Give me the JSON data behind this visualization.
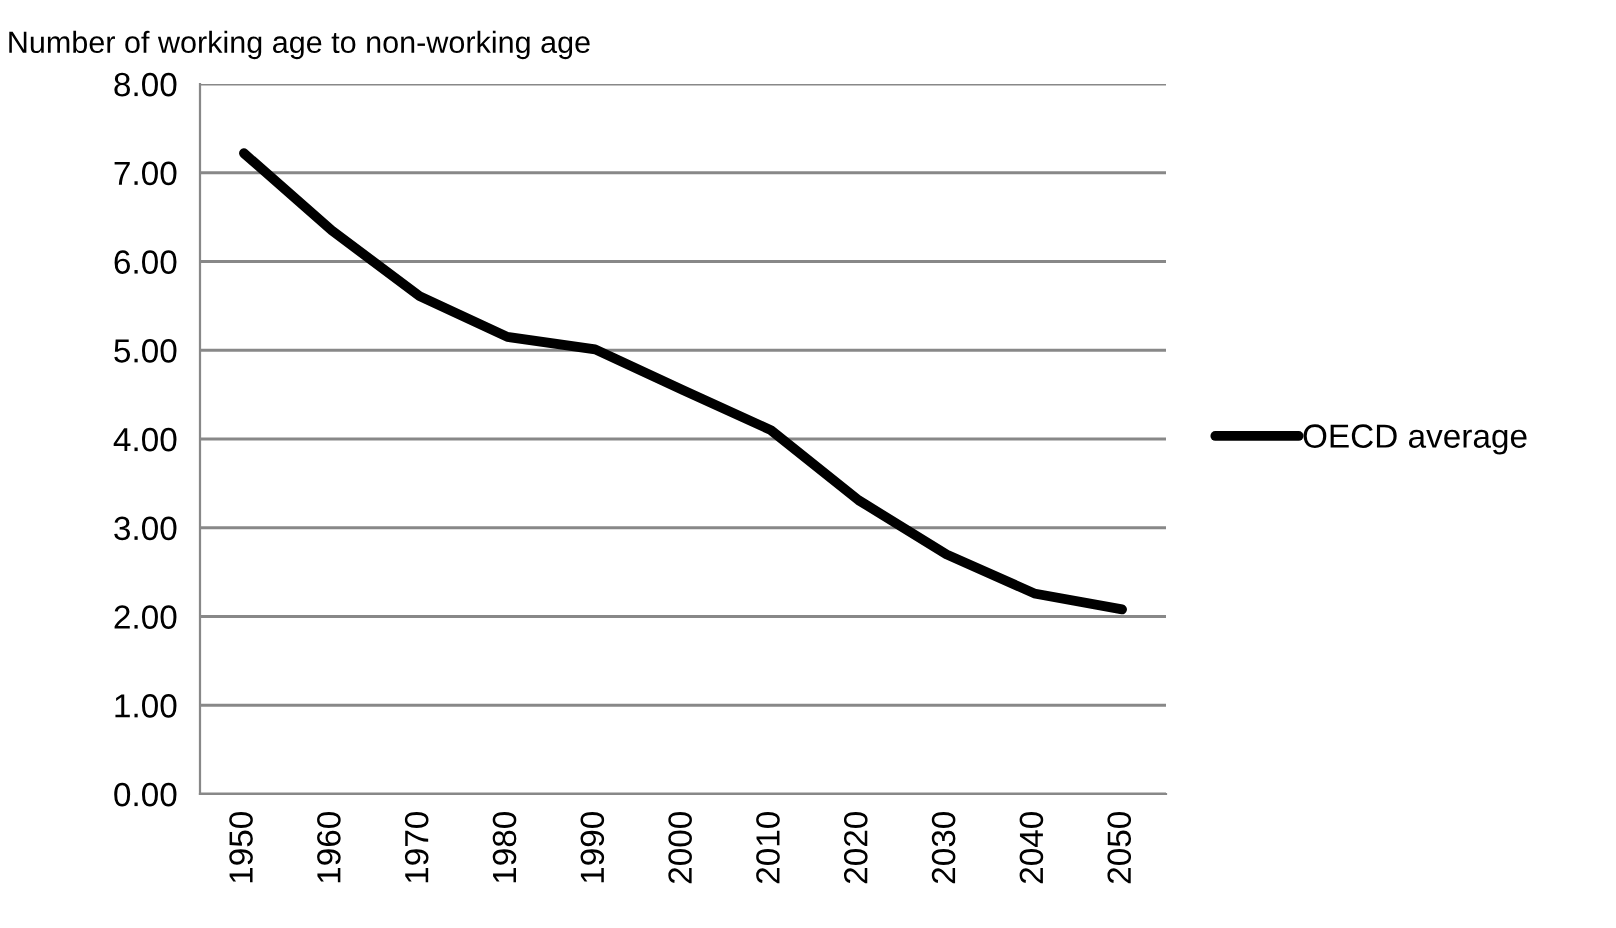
{
  "chart_data": {
    "type": "line",
    "ylabel": "Number of working age to non-working age",
    "categories": [
      "1950",
      "1960",
      "1970",
      "1980",
      "1990",
      "2000",
      "2010",
      "2020",
      "2030",
      "2040",
      "2050"
    ],
    "series": [
      {
        "name": "OECD average",
        "color": "#000000",
        "values": [
          7.22,
          6.35,
          5.61,
          5.15,
          5.01,
          4.55,
          4.1,
          3.31,
          2.7,
          2.26,
          2.08
        ]
      }
    ],
    "ylim": [
      0,
      8
    ],
    "yticks": [
      {
        "value": 0,
        "label": "0.00"
      },
      {
        "value": 1,
        "label": "1.00"
      },
      {
        "value": 2,
        "label": "2.00"
      },
      {
        "value": 3,
        "label": "3.00"
      },
      {
        "value": 4,
        "label": "4.00"
      },
      {
        "value": 5,
        "label": "5.00"
      },
      {
        "value": 6,
        "label": "6.00"
      },
      {
        "value": 7,
        "label": "7.00"
      },
      {
        "value": 8,
        "label": "8.00"
      }
    ],
    "grid": "y",
    "legend": "right",
    "marker": "none",
    "line_style": "solid"
  }
}
